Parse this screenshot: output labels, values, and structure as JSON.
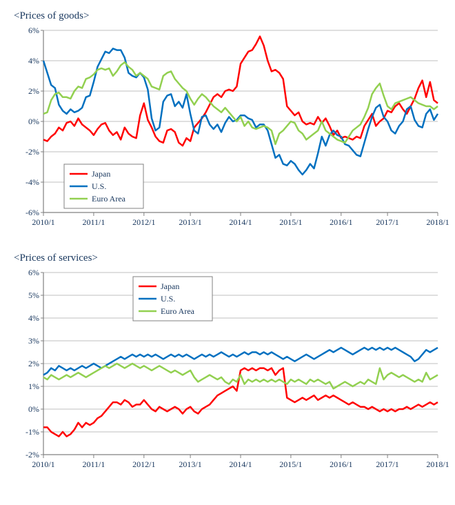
{
  "chart1": {
    "title": "<Prices of goods>",
    "title_color": "#17365d",
    "title_fontsize": 15,
    "background": "#ffffff",
    "plot_border_color": "#808080",
    "grid_color": "#bfbfbf",
    "tick_color": "#808080",
    "axis_label_fontsize": 12,
    "axis_label_color": "#17365d",
    "x_categories": [
      "2010/1",
      "2011/1",
      "2012/1",
      "2013/1",
      "2014/1",
      "2015/1",
      "2016/1",
      "2017/1",
      "2018/1"
    ],
    "ylim": [
      -6,
      6
    ],
    "ytick_step": 2,
    "ytick_labels": [
      "-6%",
      "-4%",
      "-2%",
      "0%",
      "2%",
      "4%",
      "6%"
    ],
    "line_width": 2.5,
    "legend": {
      "position": "bottom-left-inside",
      "border_color": "#808080",
      "text_color": "#17365d",
      "fontsize": 12,
      "bg": "#ffffff"
    },
    "series": [
      {
        "label": "Japan",
        "color": "#ff0000",
        "data": [
          -1.2,
          -1.3,
          -1.0,
          -0.8,
          -0.4,
          -0.6,
          -0.1,
          0.0,
          -0.3,
          0.2,
          -0.2,
          -0.4,
          -0.6,
          -0.9,
          -0.5,
          -0.2,
          -0.1,
          -0.6,
          -0.9,
          -0.7,
          -1.2,
          -0.4,
          -0.8,
          -1.0,
          -1.1,
          0.4,
          1.2,
          0.1,
          -0.4,
          -1.0,
          -1.3,
          -1.4,
          -0.6,
          -0.5,
          -0.7,
          -1.4,
          -1.6,
          -1.1,
          -1.3,
          -0.4,
          -0.1,
          0.2,
          0.6,
          1.1,
          1.6,
          1.8,
          1.6,
          2.0,
          2.1,
          2.0,
          2.3,
          3.8,
          4.2,
          4.6,
          4.7,
          5.1,
          5.6,
          5.0,
          4.0,
          3.3,
          3.4,
          3.2,
          2.8,
          1.0,
          0.7,
          0.4,
          0.6,
          0.0,
          -0.2,
          -0.1,
          -0.2,
          0.3,
          -0.1,
          0.2,
          -0.3,
          -0.9,
          -0.6,
          -1.1,
          -1.0,
          -1.1,
          -1.2,
          -1.0,
          -1.1,
          -0.3,
          0.1,
          0.5,
          -0.3,
          0.0,
          0.2,
          0.7,
          0.6,
          1.0,
          1.2,
          0.8,
          0.5,
          1.0,
          1.5,
          2.2,
          2.7,
          1.6,
          2.6,
          1.4,
          1.2
        ]
      },
      {
        "label": "U.S.",
        "color": "#0070c0",
        "data": [
          4.0,
          3.2,
          2.4,
          2.2,
          1.1,
          0.7,
          0.5,
          0.8,
          0.6,
          0.7,
          0.9,
          1.6,
          1.7,
          2.6,
          3.6,
          4.1,
          4.6,
          4.5,
          4.8,
          4.7,
          4.7,
          4.2,
          3.2,
          3.0,
          2.9,
          3.2,
          2.9,
          2.1,
          0.2,
          -0.6,
          -0.4,
          1.3,
          1.7,
          1.8,
          1.0,
          1.3,
          0.9,
          1.8,
          0.5,
          -0.6,
          -0.8,
          0.3,
          0.4,
          -0.2,
          -0.5,
          -0.2,
          -0.7,
          -0.1,
          0.3,
          0.0,
          0.1,
          0.4,
          0.4,
          0.2,
          0.1,
          -0.4,
          -0.2,
          -0.2,
          -0.6,
          -1.5,
          -2.4,
          -2.2,
          -2.8,
          -2.9,
          -2.6,
          -2.8,
          -3.2,
          -3.5,
          -3.2,
          -2.8,
          -3.1,
          -2.1,
          -1.0,
          -1.6,
          -0.9,
          -0.6,
          -0.9,
          -1.0,
          -1.5,
          -1.6,
          -1.9,
          -2.2,
          -2.3,
          -1.4,
          -0.5,
          0.3,
          0.9,
          1.1,
          0.3,
          0.0,
          -0.6,
          -0.8,
          -0.3,
          0.0,
          0.8,
          1.0,
          0.1,
          -0.3,
          -0.4,
          0.5,
          0.8,
          0.1,
          0.5
        ]
      },
      {
        "label": "Euro Area",
        "color": "#92d050",
        "data": [
          0.5,
          0.6,
          1.4,
          1.8,
          1.9,
          1.6,
          1.6,
          1.5,
          2.0,
          2.3,
          2.2,
          2.8,
          2.9,
          3.1,
          3.4,
          3.5,
          3.4,
          3.5,
          3.0,
          3.3,
          3.7,
          3.9,
          3.6,
          3.4,
          3.0,
          3.2,
          3.0,
          2.8,
          2.3,
          2.2,
          2.1,
          3.0,
          3.2,
          3.3,
          2.8,
          2.5,
          2.2,
          2.0,
          1.5,
          1.1,
          1.5,
          1.8,
          1.6,
          1.3,
          1.0,
          0.8,
          0.6,
          0.9,
          0.6,
          0.3,
          0.0,
          0.3,
          -0.3,
          0.0,
          -0.4,
          -0.5,
          -0.4,
          -0.3,
          -0.4,
          -0.6,
          -1.5,
          -0.8,
          -0.6,
          -0.3,
          0.0,
          -0.1,
          -0.6,
          -0.8,
          -1.2,
          -1.0,
          -0.8,
          -0.6,
          0.0,
          -0.6,
          -0.8,
          -1.0,
          -1.2,
          -1.3,
          -1.4,
          -1.0,
          -0.6,
          -0.4,
          -0.2,
          0.3,
          0.9,
          1.8,
          2.2,
          2.5,
          1.7,
          1.0,
          0.8,
          1.2,
          1.3,
          1.4,
          1.5,
          1.6,
          1.4,
          1.2,
          1.1,
          1.0,
          1.0,
          0.8,
          1.0
        ]
      }
    ]
  },
  "chart2": {
    "title": "<Prices of services>",
    "title_color": "#17365d",
    "title_fontsize": 15,
    "background": "#ffffff",
    "plot_border_color": "#808080",
    "grid_color": "#bfbfbf",
    "tick_color": "#808080",
    "axis_label_fontsize": 12,
    "axis_label_color": "#17365d",
    "x_categories": [
      "2010/1",
      "2011/1",
      "2012/1",
      "2013/1",
      "2014/1",
      "2015/1",
      "2016/1",
      "2017/1",
      "2018/1"
    ],
    "ylim": [
      -2,
      6
    ],
    "ytick_step": 1,
    "ytick_labels": [
      "-2%",
      "-1%",
      "0%",
      "1%",
      "2%",
      "3%",
      "4%",
      "5%",
      "6%"
    ],
    "line_width": 2.5,
    "legend": {
      "position": "top-inside",
      "border_color": "#808080",
      "text_color": "#17365d",
      "fontsize": 12,
      "bg": "#ffffff"
    },
    "series": [
      {
        "label": "Japan",
        "color": "#ff0000",
        "data": [
          -0.8,
          -0.8,
          -1.0,
          -1.1,
          -1.2,
          -1.0,
          -1.2,
          -1.1,
          -0.9,
          -0.6,
          -0.8,
          -0.6,
          -0.7,
          -0.6,
          -0.4,
          -0.3,
          -0.1,
          0.1,
          0.3,
          0.3,
          0.2,
          0.4,
          0.3,
          0.1,
          0.2,
          0.2,
          0.4,
          0.2,
          0.0,
          -0.1,
          0.1,
          0.0,
          -0.1,
          0.0,
          0.1,
          0.0,
          -0.2,
          0.0,
          0.1,
          -0.1,
          -0.2,
          0.0,
          0.1,
          0.2,
          0.4,
          0.6,
          0.7,
          0.8,
          0.9,
          1.0,
          0.8,
          1.7,
          1.8,
          1.7,
          1.8,
          1.7,
          1.8,
          1.8,
          1.7,
          1.8,
          1.5,
          1.7,
          1.8,
          0.5,
          0.4,
          0.3,
          0.4,
          0.5,
          0.4,
          0.5,
          0.6,
          0.4,
          0.5,
          0.6,
          0.5,
          0.6,
          0.5,
          0.4,
          0.3,
          0.2,
          0.3,
          0.2,
          0.1,
          0.1,
          0.0,
          0.1,
          0.0,
          -0.1,
          0.0,
          -0.1,
          0.0,
          -0.1,
          0.0,
          0.0,
          0.1,
          0.0,
          0.1,
          0.2,
          0.1,
          0.2,
          0.3,
          0.2,
          0.3
        ]
      },
      {
        "label": "U.S.",
        "color": "#0070c0",
        "data": [
          1.5,
          1.6,
          1.8,
          1.7,
          1.9,
          1.8,
          1.7,
          1.8,
          1.7,
          1.8,
          1.9,
          1.8,
          1.9,
          2.0,
          1.9,
          1.8,
          1.9,
          2.0,
          2.1,
          2.2,
          2.3,
          2.2,
          2.3,
          2.4,
          2.3,
          2.4,
          2.3,
          2.4,
          2.3,
          2.4,
          2.3,
          2.2,
          2.3,
          2.4,
          2.3,
          2.4,
          2.3,
          2.4,
          2.3,
          2.2,
          2.3,
          2.4,
          2.3,
          2.4,
          2.3,
          2.4,
          2.5,
          2.4,
          2.3,
          2.4,
          2.3,
          2.4,
          2.5,
          2.4,
          2.5,
          2.5,
          2.4,
          2.5,
          2.4,
          2.5,
          2.4,
          2.3,
          2.2,
          2.3,
          2.2,
          2.1,
          2.2,
          2.3,
          2.4,
          2.3,
          2.2,
          2.3,
          2.4,
          2.5,
          2.6,
          2.5,
          2.6,
          2.7,
          2.6,
          2.5,
          2.4,
          2.5,
          2.6,
          2.7,
          2.6,
          2.7,
          2.6,
          2.7,
          2.6,
          2.7,
          2.6,
          2.7,
          2.6,
          2.5,
          2.4,
          2.3,
          2.1,
          2.2,
          2.4,
          2.6,
          2.5,
          2.6,
          2.7
        ]
      },
      {
        "label": "Euro Area",
        "color": "#92d050",
        "data": [
          1.4,
          1.3,
          1.5,
          1.4,
          1.3,
          1.4,
          1.5,
          1.4,
          1.5,
          1.6,
          1.5,
          1.4,
          1.5,
          1.6,
          1.7,
          1.8,
          1.9,
          1.8,
          1.9,
          2.0,
          1.9,
          1.8,
          1.9,
          2.0,
          1.9,
          1.8,
          1.9,
          1.8,
          1.7,
          1.8,
          1.9,
          1.8,
          1.7,
          1.6,
          1.7,
          1.6,
          1.5,
          1.6,
          1.7,
          1.4,
          1.2,
          1.3,
          1.4,
          1.5,
          1.4,
          1.3,
          1.4,
          1.2,
          1.1,
          1.3,
          1.2,
          1.5,
          1.1,
          1.3,
          1.2,
          1.3,
          1.2,
          1.3,
          1.2,
          1.3,
          1.2,
          1.3,
          1.2,
          1.1,
          1.3,
          1.2,
          1.3,
          1.2,
          1.1,
          1.3,
          1.2,
          1.3,
          1.2,
          1.1,
          1.2,
          0.9,
          1.0,
          1.1,
          1.2,
          1.1,
          1.0,
          1.1,
          1.2,
          1.1,
          1.3,
          1.2,
          1.1,
          1.8,
          1.3,
          1.5,
          1.6,
          1.5,
          1.4,
          1.5,
          1.4,
          1.3,
          1.2,
          1.3,
          1.2,
          1.6,
          1.3,
          1.4,
          1.5
        ]
      }
    ]
  }
}
